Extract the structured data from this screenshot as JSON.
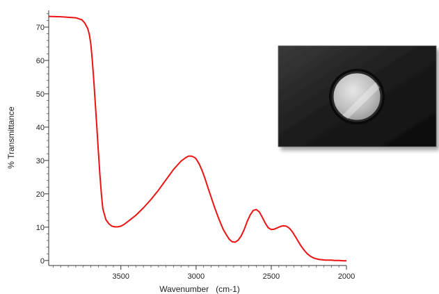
{
  "chart_data": {
    "type": "line",
    "title": "",
    "xlabel": "Wavenumber   (cm-1)",
    "ylabel": "% Transmittance",
    "xlim": [
      3980,
      2000
    ],
    "x_reversed": true,
    "ylim": [
      -1.5,
      75
    ],
    "x_ticks": [
      3500,
      3000,
      2500,
      2000
    ],
    "y_ticks": [
      0,
      10,
      20,
      30,
      40,
      50,
      60,
      70
    ],
    "grid": false,
    "legend": "none",
    "line_color": "#ee1111",
    "series": [
      {
        "x": [
          3980,
          3900,
          3800,
          3760,
          3740,
          3720,
          3710,
          3700,
          3690,
          3680,
          3670,
          3660,
          3650,
          3640,
          3630,
          3620,
          3600,
          3580,
          3560,
          3540,
          3520,
          3500,
          3480,
          3450,
          3400,
          3350,
          3300,
          3250,
          3200,
          3150,
          3100,
          3070,
          3050,
          3030,
          3010,
          3000,
          2980,
          2960,
          2940,
          2920,
          2900,
          2880,
          2850,
          2820,
          2800,
          2780,
          2760,
          2740,
          2720,
          2700,
          2680,
          2660,
          2640,
          2620,
          2600,
          2580,
          2560,
          2540,
          2520,
          2500,
          2480,
          2460,
          2440,
          2420,
          2400,
          2380,
          2360,
          2340,
          2320,
          2300,
          2280,
          2260,
          2240,
          2220,
          2200,
          2180,
          2160,
          2140,
          2120,
          2100,
          2080,
          2050,
          2020,
          2000
        ],
        "y": [
          73.2,
          73.1,
          72.8,
          72.2,
          71.2,
          69.5,
          67.8,
          65.0,
          60.0,
          54.0,
          47.0,
          40.0,
          33.0,
          26.0,
          20.0,
          15.5,
          12.3,
          11.0,
          10.3,
          10.1,
          10.1,
          10.3,
          10.8,
          11.8,
          13.6,
          15.8,
          18.3,
          21.1,
          24.2,
          27.3,
          29.8,
          30.8,
          31.3,
          31.3,
          30.9,
          30.5,
          29.0,
          27.0,
          24.5,
          21.7,
          19.0,
          16.3,
          12.6,
          9.4,
          7.8,
          6.4,
          5.6,
          5.5,
          6.1,
          7.4,
          9.3,
          11.7,
          13.7,
          15.0,
          15.3,
          14.6,
          13.0,
          11.2,
          9.8,
          9.3,
          9.4,
          9.8,
          10.2,
          10.4,
          10.3,
          9.7,
          8.6,
          7.2,
          5.7,
          4.2,
          3.0,
          2.0,
          1.3,
          0.8,
          0.5,
          0.3,
          0.2,
          0.1,
          0.1,
          0.1,
          0.0,
          0.0,
          -0.1,
          -0.1
        ]
      }
    ]
  },
  "inset_image": {
    "subject": "sample holder plate with circular window",
    "plate_color": "#1c1c1c",
    "window_color": "#bdbdbd"
  }
}
